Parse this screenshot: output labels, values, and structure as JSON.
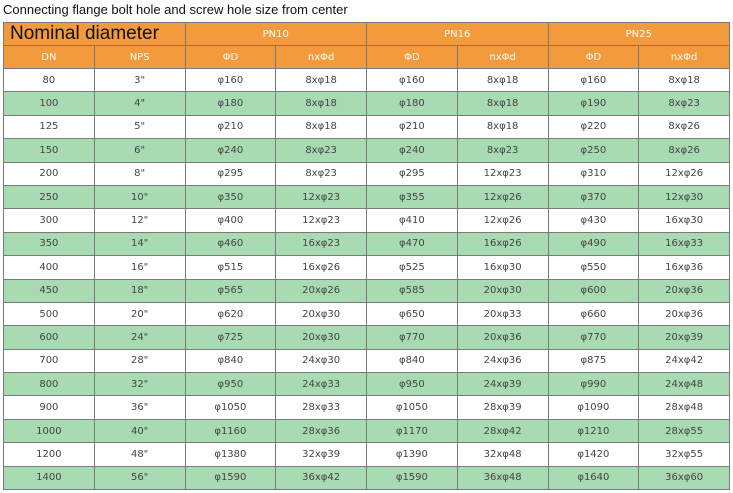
{
  "title": "Connecting flange bolt hole and screw hole size from center",
  "table": {
    "groups": [
      "Nominal diameter",
      "PN10",
      "PN16",
      "PN25"
    ],
    "columns": [
      "DN",
      "NPS",
      "ΦD",
      "nxΦd",
      "ΦD",
      "nxΦd",
      "ΦD",
      "nxΦd"
    ],
    "rows": [
      [
        "80",
        "3\"",
        "φ160",
        "8xφ18",
        "φ160",
        "8xφ18",
        "φ160",
        "8xφ18"
      ],
      [
        "100",
        "4\"",
        "φ180",
        "8xφ18",
        "φ180",
        "8xφ18",
        "φ190",
        "8xφ23"
      ],
      [
        "125",
        "5\"",
        "φ210",
        "8xφ18",
        "φ210",
        "8xφ18",
        "φ220",
        "8xφ26"
      ],
      [
        "150",
        "6\"",
        "φ240",
        "8xφ23",
        "φ240",
        "8xφ23",
        "φ250",
        "8xφ26"
      ],
      [
        "200",
        "8\"",
        "φ295",
        "8xφ23",
        "φ295",
        "12xφ23",
        "φ310",
        "12xφ26"
      ],
      [
        "250",
        "10\"",
        "φ350",
        "12xφ23",
        "φ355",
        "12xφ26",
        "φ370",
        "12xφ30"
      ],
      [
        "300",
        "12\"",
        "φ400",
        "12xφ23",
        "φ410",
        "12xφ26",
        "φ430",
        "16xφ30"
      ],
      [
        "350",
        "14\"",
        "φ460",
        "16xφ23",
        "φ470",
        "16xφ26",
        "φ490",
        "16xφ33"
      ],
      [
        "400",
        "16\"",
        "φ515",
        "16xφ26",
        "φ525",
        "16xφ30",
        "φ550",
        "16xφ36"
      ],
      [
        "450",
        "18\"",
        "φ565",
        "20xφ26",
        "φ585",
        "20xφ30",
        "φ600",
        "20xφ36"
      ],
      [
        "500",
        "20\"",
        "φ620",
        "20xφ30",
        "φ650",
        "20xφ33",
        "φ660",
        "20xφ36"
      ],
      [
        "600",
        "24\"",
        "φ725",
        "20xφ30",
        "φ770",
        "20xφ36",
        "φ770",
        "20xφ39"
      ],
      [
        "700",
        "28\"",
        "φ840",
        "24xφ30",
        "φ840",
        "24xφ36",
        "φ875",
        "24xφ42"
      ],
      [
        "800",
        "32\"",
        "φ950",
        "24xφ33",
        "φ950",
        "24xφ39",
        "φ990",
        "24xφ48"
      ],
      [
        "900",
        "36\"",
        "φ1050",
        "28xφ33",
        "φ1050",
        "28xφ39",
        "φ1090",
        "28xφ48"
      ],
      [
        "1000",
        "40\"",
        "φ1160",
        "28xφ36",
        "φ1170",
        "28xφ42",
        "φ1210",
        "28xφ55"
      ],
      [
        "1200",
        "48\"",
        "φ1380",
        "32xφ39",
        "φ1390",
        "32xφ48",
        "φ1420",
        "32xφ55"
      ],
      [
        "1400",
        "56\"",
        "φ1590",
        "36xφ42",
        "φ1590",
        "36xφ48",
        "φ1640",
        "36xφ60"
      ]
    ]
  }
}
